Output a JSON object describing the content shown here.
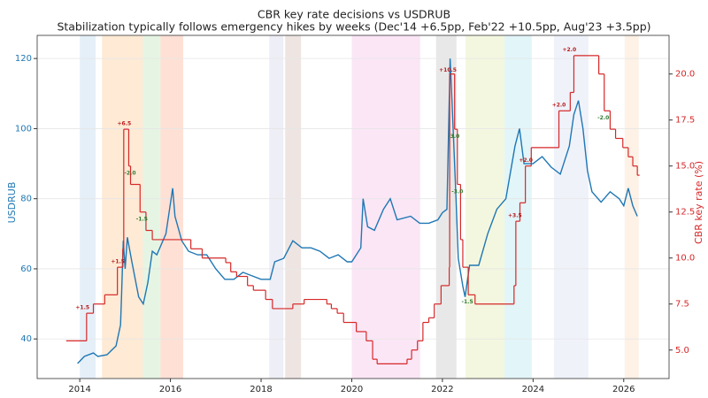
{
  "chart_data": {
    "type": "line",
    "title": "CBR key rate decisions vs USDRUB",
    "subtitle": "Stabilization typically follows emergency hikes by weeks (Dec'14 +6.5pp, Feb'22 +10.5pp, Aug'23 +3.5pp)",
    "ylabel": "USDRUB",
    "y2label": "CBR key rate (%)",
    "xlim": [
      2013.06,
      2027.0
    ],
    "xticks": [
      2014,
      2016,
      2018,
      2020,
      2022,
      2024,
      2026
    ],
    "ylim": [
      28.7,
      126.6
    ],
    "yticks": [
      40,
      60,
      80,
      100,
      120
    ],
    "y2lim": [
      3.45,
      22.1
    ],
    "y2ticks": [
      {
        "value": 5,
        "label": "5.0"
      },
      7.5,
      {
        "value": 10,
        "label": "10.0"
      },
      12.5,
      {
        "value": 15,
        "label": "15.0"
      },
      17.5,
      {
        "value": 20,
        "label": "20.0"
      }
    ],
    "grid": true,
    "series": [
      {
        "color": "#1f77b4",
        "x": [
          2013.95,
          2014.1,
          2014.3,
          2014.4,
          2014.6,
          2014.8,
          2014.9,
          2014.92,
          2014.96,
          2015.0,
          2015.05,
          2015.15,
          2015.3,
          2015.4,
          2015.5,
          2015.6,
          2015.7,
          2015.9,
          2016.05,
          2016.1,
          2016.25,
          2016.4,
          2016.6,
          2016.8,
          2017.0,
          2017.2,
          2017.4,
          2017.6,
          2017.8,
          2018.0,
          2018.2,
          2018.3,
          2018.5,
          2018.7,
          2018.9,
          2019.1,
          2019.3,
          2019.5,
          2019.7,
          2019.9,
          2020.0,
          2020.2,
          2020.25,
          2020.35,
          2020.5,
          2020.7,
          2020.85,
          2021.0,
          2021.3,
          2021.5,
          2021.7,
          2021.9,
          2022.0,
          2022.1,
          2022.17,
          2022.22,
          2022.3,
          2022.35,
          2022.45,
          2022.5,
          2022.6,
          2022.8,
          2023.0,
          2023.2,
          2023.4,
          2023.6,
          2023.7,
          2023.8,
          2024.0,
          2024.2,
          2024.4,
          2024.6,
          2024.8,
          2024.9,
          2025.0,
          2025.1,
          2025.2,
          2025.3,
          2025.5,
          2025.7,
          2025.9,
          2026.0,
          2026.1,
          2026.2,
          2026.3
        ],
        "values": [
          33,
          35,
          36,
          35,
          35.5,
          38,
          44,
          52,
          68,
          60,
          69,
          62,
          52,
          50,
          56,
          65,
          64,
          70,
          83,
          75,
          68,
          65,
          64,
          64,
          60,
          57,
          57,
          59,
          58,
          57,
          57,
          62,
          63,
          68,
          66,
          66,
          65,
          63,
          64,
          62,
          62,
          66,
          80,
          72,
          71,
          77,
          80,
          74,
          75,
          73,
          73,
          74,
          76,
          77,
          120,
          105,
          80,
          63,
          55,
          52,
          61,
          61,
          70,
          77,
          80,
          95,
          100,
          90,
          90,
          92,
          89,
          87,
          95,
          104,
          108,
          100,
          88,
          82,
          79,
          82,
          80,
          78,
          83,
          78,
          75
        ]
      },
      {
        "color": "#d62728",
        "axis": "y2",
        "drawstyle": "steps-post",
        "x": [
          2013.7,
          2014.15,
          2014.3,
          2014.55,
          2014.83,
          2014.95,
          2014.97,
          2015.08,
          2015.12,
          2015.33,
          2015.46,
          2015.6,
          2016.45,
          2016.7,
          2017.22,
          2017.33,
          2017.46,
          2017.7,
          2017.83,
          2018.1,
          2018.25,
          2018.7,
          2018.95,
          2019.45,
          2019.55,
          2019.68,
          2019.82,
          2020.1,
          2020.32,
          2020.46,
          2020.56,
          2021.22,
          2021.32,
          2021.45,
          2021.57,
          2021.7,
          2021.82,
          2021.97,
          2022.15,
          2022.16,
          2022.27,
          2022.33,
          2022.4,
          2022.45,
          2022.57,
          2022.72,
          2023.58,
          2023.62,
          2023.71,
          2023.83,
          2023.96,
          2024.57,
          2024.82,
          2024.9,
          2025.45,
          2025.57,
          2025.7,
          2025.82,
          2025.98,
          2026.1,
          2026.2,
          2026.3,
          2026.35
        ],
        "values": [
          5.5,
          7,
          7.5,
          8,
          9.5,
          10.5,
          17,
          15,
          14,
          12.5,
          11.5,
          11,
          10.5,
          10,
          9.75,
          9.25,
          9,
          8.5,
          8.25,
          7.75,
          7.25,
          7.5,
          7.75,
          7.5,
          7.25,
          7,
          6.5,
          6,
          5.5,
          4.5,
          4.25,
          4.5,
          5,
          5.5,
          6.5,
          6.75,
          7.5,
          8.5,
          9.5,
          20,
          17,
          14,
          11,
          9.5,
          8,
          7.5,
          8.5,
          12,
          13,
          15,
          16,
          18,
          19,
          21,
          20,
          18,
          17,
          16.5,
          16,
          15.5,
          15,
          14.5,
          14.5
        ]
      }
    ],
    "spans": [
      {
        "x": [
          2014.0,
          2014.35
        ],
        "color": "#c6dbef"
      },
      {
        "x": [
          2014.49,
          2015.39
        ],
        "color": "#fdd0a2"
      },
      {
        "x": [
          2015.39,
          2015.78
        ],
        "color": "#c7e9c0"
      },
      {
        "x": [
          2015.78,
          2016.28
        ],
        "color": "#fcbba1"
      },
      {
        "x": [
          2018.18,
          2018.49
        ],
        "color": "#dadaeb"
      },
      {
        "x": [
          2018.53,
          2018.88
        ],
        "color": "#d9c6bf"
      },
      {
        "x": [
          2020.0,
          2021.51
        ],
        "color": "#f6c8ea"
      },
      {
        "x": [
          2021.86,
          2022.31
        ],
        "color": "#cccccc"
      },
      {
        "x": [
          2022.51,
          2023.37
        ],
        "color": "#e5eeb8"
      },
      {
        "x": [
          2023.37,
          2023.97
        ],
        "color": "#bfe9f0"
      },
      {
        "x": [
          2024.46,
          2025.22
        ],
        "color": "#dde3f5"
      },
      {
        "x": [
          2026.02,
          2026.33
        ],
        "color": "#fde0c8"
      }
    ],
    "annotations": [
      {
        "text": "+1.5",
        "x": 2014.06,
        "y": 7.3,
        "color": "#b71c1c"
      },
      {
        "text": "+6.5",
        "x": 2014.98,
        "y": 17.3,
        "color": "#b71c1c"
      },
      {
        "text": "-2.0",
        "x": 2015.11,
        "y": 14.6,
        "color": "#2e7d32"
      },
      {
        "text": "-1.5",
        "x": 2015.37,
        "y": 12.1,
        "color": "#2e7d32"
      },
      {
        "text": "+1.5",
        "x": 2014.84,
        "y": 9.8,
        "color": "#b71c1c"
      },
      {
        "text": "+10.5",
        "x": 2022.12,
        "y": 20.2,
        "color": "#b71c1c"
      },
      {
        "text": "-3.0",
        "x": 2022.25,
        "y": 16.6,
        "color": "#2e7d32"
      },
      {
        "text": "-3.0",
        "x": 2022.33,
        "y": 13.6,
        "color": "#2e7d32"
      },
      {
        "text": "-1.5",
        "x": 2022.55,
        "y": 7.6,
        "color": "#2e7d32"
      },
      {
        "text": "+3.5",
        "x": 2023.6,
        "y": 12.3,
        "color": "#b71c1c"
      },
      {
        "text": "+2.0",
        "x": 2023.84,
        "y": 15.3,
        "color": "#b71c1c"
      },
      {
        "text": "+2.0",
        "x": 2024.57,
        "y": 18.3,
        "color": "#b71c1c"
      },
      {
        "text": "+2.0",
        "x": 2024.8,
        "y": 21.3,
        "color": "#b71c1c"
      },
      {
        "text": "-2.0",
        "x": 2025.55,
        "y": 17.6,
        "color": "#2e7d32"
      }
    ]
  }
}
